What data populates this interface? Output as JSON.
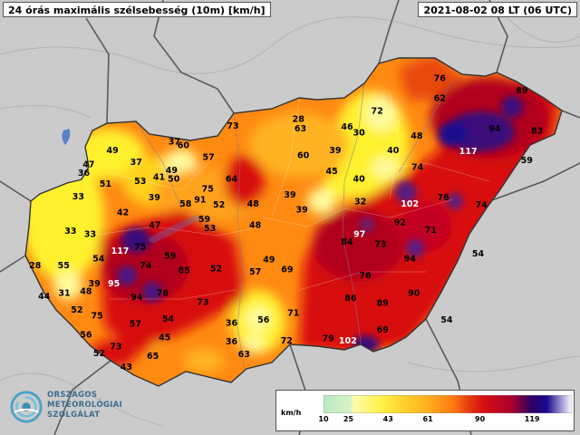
{
  "header": {
    "title": "24 órás maximális szélsebesség (10m) [km/h]",
    "timestamp": "2021-08-02 08 LT (06 UTC)"
  },
  "logo": {
    "line1": "ORSZÁGOS",
    "line2": "METEOROLÓGIAI",
    "line3": "SZOLGÁLAT"
  },
  "legend": {
    "unit": "km/h",
    "ticks": [
      "10",
      "25",
      "43",
      "61",
      "90",
      "119"
    ],
    "colors": [
      "#b9e9c2",
      "#fefbb0",
      "#fff24a",
      "#ffb31f",
      "#ff7b10",
      "#d81010",
      "#a6002d",
      "#2a0066",
      "#1b0a8f",
      "#ffffff"
    ]
  },
  "stations": [
    {
      "v": "28",
      "lon": 18.92,
      "lat": 48.07
    },
    {
      "v": "76",
      "lon": 20.95,
      "lat": 48.48
    },
    {
      "v": "89",
      "lon": 22.13,
      "lat": 48.36
    },
    {
      "v": "72",
      "lon": 20.05,
      "lat": 48.15
    },
    {
      "v": "62",
      "lon": 20.95,
      "lat": 48.28
    },
    {
      "v": "94",
      "lon": 21.74,
      "lat": 47.97
    },
    {
      "v": "83",
      "lon": 22.35,
      "lat": 47.95
    },
    {
      "v": "73",
      "lon": 17.98,
      "lat": 48.0
    },
    {
      "v": "63",
      "lon": 18.95,
      "lat": 47.97
    },
    {
      "v": "46",
      "lon": 19.62,
      "lat": 47.99
    },
    {
      "v": "30",
      "lon": 19.79,
      "lat": 47.93
    },
    {
      "v": "48",
      "lon": 20.62,
      "lat": 47.9
    },
    {
      "v": "117",
      "lon": 21.36,
      "lat": 47.74
    },
    {
      "v": "59",
      "lon": 22.2,
      "lat": 47.65
    },
    {
      "v": "37",
      "lon": 17.14,
      "lat": 47.84
    },
    {
      "v": "60",
      "lon": 17.27,
      "lat": 47.8
    },
    {
      "v": "40",
      "lon": 20.28,
      "lat": 47.75
    },
    {
      "v": "60",
      "lon": 18.99,
      "lat": 47.7
    },
    {
      "v": "39",
      "lon": 19.45,
      "lat": 47.75
    },
    {
      "v": "57",
      "lon": 17.63,
      "lat": 47.68
    },
    {
      "v": "74",
      "lon": 20.63,
      "lat": 47.58
    },
    {
      "v": "49",
      "lon": 16.25,
      "lat": 47.75
    },
    {
      "v": "37",
      "lon": 16.59,
      "lat": 47.63
    },
    {
      "v": "47",
      "lon": 15.91,
      "lat": 47.61
    },
    {
      "v": "49",
      "lon": 17.1,
      "lat": 47.55
    },
    {
      "v": "45",
      "lon": 19.4,
      "lat": 47.54
    },
    {
      "v": "36",
      "lon": 15.84,
      "lat": 47.52
    },
    {
      "v": "53",
      "lon": 16.65,
      "lat": 47.44
    },
    {
      "v": "41",
      "lon": 16.92,
      "lat": 47.48
    },
    {
      "v": "50",
      "lon": 17.13,
      "lat": 47.46
    },
    {
      "v": "64",
      "lon": 17.96,
      "lat": 47.46
    },
    {
      "v": "40",
      "lon": 19.79,
      "lat": 47.46
    },
    {
      "v": "51",
      "lon": 16.15,
      "lat": 47.41
    },
    {
      "v": "75",
      "lon": 17.62,
      "lat": 47.36
    },
    {
      "v": "33",
      "lon": 15.76,
      "lat": 47.28
    },
    {
      "v": "39",
      "lon": 16.85,
      "lat": 47.27
    },
    {
      "v": "91",
      "lon": 17.51,
      "lat": 47.25
    },
    {
      "v": "58",
      "lon": 17.3,
      "lat": 47.21
    },
    {
      "v": "52",
      "lon": 17.78,
      "lat": 47.2
    },
    {
      "v": "48",
      "lon": 18.27,
      "lat": 47.21
    },
    {
      "v": "39",
      "lon": 18.8,
      "lat": 47.3
    },
    {
      "v": "32",
      "lon": 19.81,
      "lat": 47.23
    },
    {
      "v": "102",
      "lon": 20.52,
      "lat": 47.21
    },
    {
      "v": "76",
      "lon": 21.0,
      "lat": 47.27
    },
    {
      "v": "74",
      "lon": 21.55,
      "lat": 47.2
    },
    {
      "v": "39",
      "lon": 18.97,
      "lat": 47.15
    },
    {
      "v": "42",
      "lon": 16.4,
      "lat": 47.12
    },
    {
      "v": "59",
      "lon": 17.57,
      "lat": 47.05
    },
    {
      "v": "53",
      "lon": 17.65,
      "lat": 46.96
    },
    {
      "v": "48",
      "lon": 18.3,
      "lat": 46.99
    },
    {
      "v": "47",
      "lon": 16.86,
      "lat": 46.99
    },
    {
      "v": "92",
      "lon": 20.38,
      "lat": 47.02
    },
    {
      "v": "71",
      "lon": 20.82,
      "lat": 46.94
    },
    {
      "v": "97",
      "lon": 19.8,
      "lat": 46.9
    },
    {
      "v": "33",
      "lon": 15.65,
      "lat": 46.93
    },
    {
      "v": "33",
      "lon": 15.93,
      "lat": 46.9
    },
    {
      "v": "84",
      "lon": 19.62,
      "lat": 46.82
    },
    {
      "v": "73",
      "lon": 20.1,
      "lat": 46.8
    },
    {
      "v": "117",
      "lon": 16.36,
      "lat": 46.73
    },
    {
      "v": "75",
      "lon": 16.65,
      "lat": 46.77
    },
    {
      "v": "59",
      "lon": 17.08,
      "lat": 46.68
    },
    {
      "v": "49",
      "lon": 18.5,
      "lat": 46.64
    },
    {
      "v": "94",
      "lon": 20.52,
      "lat": 46.65
    },
    {
      "v": "54",
      "lon": 21.5,
      "lat": 46.7
    },
    {
      "v": "54",
      "lon": 16.05,
      "lat": 46.65
    },
    {
      "v": "74",
      "lon": 16.73,
      "lat": 46.58
    },
    {
      "v": "85",
      "lon": 17.28,
      "lat": 46.53
    },
    {
      "v": "52",
      "lon": 17.74,
      "lat": 46.55
    },
    {
      "v": "57",
      "lon": 18.3,
      "lat": 46.52
    },
    {
      "v": "69",
      "lon": 18.76,
      "lat": 46.54
    },
    {
      "v": "76",
      "lon": 19.88,
      "lat": 46.48
    },
    {
      "v": "28",
      "lon": 15.14,
      "lat": 46.58
    },
    {
      "v": "55",
      "lon": 15.55,
      "lat": 46.58
    },
    {
      "v": "39",
      "lon": 15.99,
      "lat": 46.4
    },
    {
      "v": "95",
      "lon": 16.27,
      "lat": 46.4
    },
    {
      "v": "48",
      "lon": 15.87,
      "lat": 46.32
    },
    {
      "v": "31",
      "lon": 15.56,
      "lat": 46.3
    },
    {
      "v": "94",
      "lon": 16.6,
      "lat": 46.26
    },
    {
      "v": "78",
      "lon": 16.97,
      "lat": 46.3
    },
    {
      "v": "44",
      "lon": 15.27,
      "lat": 46.27
    },
    {
      "v": "73",
      "lon": 17.55,
      "lat": 46.21
    },
    {
      "v": "90",
      "lon": 20.58,
      "lat": 46.3
    },
    {
      "v": "86",
      "lon": 19.67,
      "lat": 46.25
    },
    {
      "v": "89",
      "lon": 20.13,
      "lat": 46.2
    },
    {
      "v": "52",
      "lon": 15.74,
      "lat": 46.13
    },
    {
      "v": "75",
      "lon": 16.03,
      "lat": 46.07
    },
    {
      "v": "71",
      "lon": 18.85,
      "lat": 46.1
    },
    {
      "v": "54",
      "lon": 21.05,
      "lat": 46.03
    },
    {
      "v": "54",
      "lon": 17.05,
      "lat": 46.04
    },
    {
      "v": "56",
      "lon": 18.42,
      "lat": 46.03
    },
    {
      "v": "57",
      "lon": 16.58,
      "lat": 45.99
    },
    {
      "v": "36",
      "lon": 17.96,
      "lat": 46.0
    },
    {
      "v": "56",
      "lon": 15.87,
      "lat": 45.88
    },
    {
      "v": "69",
      "lon": 20.13,
      "lat": 45.93
    },
    {
      "v": "45",
      "lon": 17.0,
      "lat": 45.85
    },
    {
      "v": "79",
      "lon": 19.35,
      "lat": 45.84
    },
    {
      "v": "102",
      "lon": 19.63,
      "lat": 45.82
    },
    {
      "v": "36",
      "lon": 17.96,
      "lat": 45.81
    },
    {
      "v": "72",
      "lon": 18.75,
      "lat": 45.82
    },
    {
      "v": "73",
      "lon": 16.3,
      "lat": 45.76
    },
    {
      "v": "52",
      "lon": 16.06,
      "lat": 45.69
    },
    {
      "v": "65",
      "lon": 16.83,
      "lat": 45.66
    },
    {
      "v": "63",
      "lon": 18.14,
      "lat": 45.68
    },
    {
      "v": "43",
      "lon": 16.45,
      "lat": 45.55
    }
  ]
}
